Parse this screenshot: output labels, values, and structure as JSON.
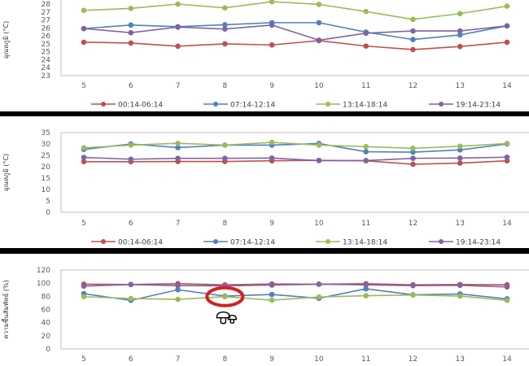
{
  "colors": {
    "s0": "#c0504d",
    "s1": "#4f81bd",
    "s2": "#9bbb59",
    "s3": "#8064a2",
    "highlight": "#d42020"
  },
  "chart_data": [
    {
      "type": "line",
      "ylabel": "อุณหภูมิ (°C)",
      "x": [
        5,
        6,
        7,
        8,
        9,
        10,
        11,
        12,
        13,
        14
      ],
      "ylim": [
        23,
        28
      ],
      "yticks": [
        23,
        23.5,
        24,
        24.5,
        25,
        25.5,
        26,
        26.5,
        27,
        27.5
      ],
      "ytick_labels": [
        "23",
        "24",
        "24",
        "25",
        "25",
        "26",
        "26",
        "27",
        "27",
        "28"
      ],
      "series": [
        {
          "name": "00:14-06:14",
          "values": [
            25.1,
            25.05,
            24.85,
            25.0,
            24.93,
            25.2,
            24.86,
            24.64,
            24.83,
            25.1
          ]
        },
        {
          "name": "07:14-12:14",
          "values": [
            25.96,
            26.18,
            26.08,
            26.2,
            26.33,
            26.33,
            25.74,
            25.27,
            25.56,
            26.13
          ]
        },
        {
          "name": "13:14-18:14",
          "values": [
            27.1,
            27.23,
            27.5,
            27.26,
            27.65,
            27.48,
            27.03,
            26.54,
            26.9,
            27.37
          ]
        },
        {
          "name": "19:14-23:14",
          "values": [
            25.96,
            25.7,
            26.05,
            25.93,
            26.18,
            25.23,
            25.67,
            25.81,
            25.81,
            26.13
          ]
        }
      ],
      "legend": "bottom"
    },
    {
      "type": "line",
      "ylabel": "อุณหภูมิ (°C)",
      "x": [
        5,
        6,
        7,
        8,
        9,
        10,
        11,
        12,
        13,
        14
      ],
      "ylim": [
        0,
        35
      ],
      "yticks": [
        0,
        5,
        10,
        15,
        20,
        25,
        30,
        35
      ],
      "ytick_labels": [
        "0",
        "5",
        "10",
        "15",
        "20",
        "25",
        "30",
        "35"
      ],
      "series": [
        {
          "name": "00:14-06:14",
          "values": [
            22.2,
            22.2,
            22.3,
            22.3,
            22.6,
            22.8,
            22.6,
            21.1,
            21.6,
            22.6
          ]
        },
        {
          "name": "07:14-12:14",
          "values": [
            27.6,
            30,
            28.4,
            29.5,
            29.5,
            30.2,
            26.6,
            26.4,
            27.4,
            30
          ]
        },
        {
          "name": "13:14-18:14",
          "values": [
            28.3,
            29.5,
            30.3,
            29.5,
            30.7,
            29.5,
            28.8,
            28.1,
            29,
            30.2
          ]
        },
        {
          "name": "19:14-23:14",
          "values": [
            24.1,
            23.3,
            23.7,
            23.7,
            23.8,
            22.7,
            22.7,
            23.7,
            23.8,
            24.2
          ]
        }
      ],
      "legend": "bottom"
    },
    {
      "type": "line",
      "ylabel": "ความชื้นสัมพัทธ์ (%)",
      "x": [
        5,
        6,
        7,
        8,
        9,
        10,
        11,
        12,
        13,
        14
      ],
      "ylim": [
        0,
        120
      ],
      "yticks": [
        0,
        20,
        40,
        60,
        80,
        100,
        120
      ],
      "ytick_labels": [
        "0",
        "20",
        "40",
        "60",
        "80",
        "100",
        "120"
      ],
      "series": [
        {
          "name": "00:14-06:14",
          "values": [
            98.4,
            98,
            99.2,
            97.5,
            98.8,
            98.4,
            99.2,
            97.5,
            98,
            97.5
          ]
        },
        {
          "name": "07:14-12:14",
          "values": [
            84,
            73.8,
            90,
            80.3,
            82.8,
            77,
            91.4,
            82.4,
            83.6,
            76.2
          ]
        },
        {
          "name": "13:14-18:14",
          "values": [
            79.5,
            76.6,
            75.4,
            79.5,
            74.2,
            79,
            81,
            82,
            80.3,
            73.8
          ]
        },
        {
          "name": "19:14-23:14",
          "values": [
            95.5,
            98,
            96.3,
            95.9,
            97.1,
            98.4,
            97.5,
            96.3,
            96.7,
            94.3
          ]
        }
      ],
      "annotation": {
        "x": 8,
        "y": 79.5,
        "type": "circle-highlight",
        "icon": "mushroom-icon"
      }
    }
  ]
}
